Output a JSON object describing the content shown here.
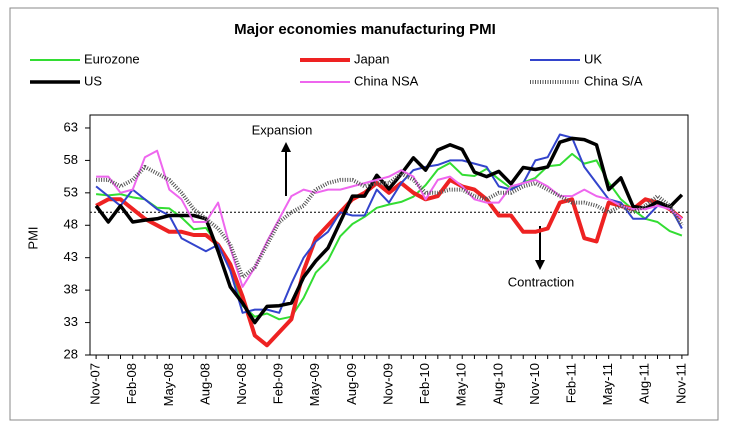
{
  "chart_data": {
    "type": "line",
    "title": "Major economies manufacturing PMI",
    "y_label": "PMI",
    "annotations": [
      "Expansion",
      "Contraction"
    ],
    "reference_line": 50,
    "categories": [
      "Nov-07",
      null,
      null,
      "Feb-08",
      null,
      null,
      "May-08",
      null,
      null,
      "Aug-08",
      null,
      null,
      "Nov-08",
      null,
      null,
      "Feb-09",
      null,
      null,
      "May-09",
      null,
      null,
      "Aug-09",
      null,
      null,
      "Nov-09",
      null,
      null,
      "Feb-10",
      null,
      null,
      "May-10",
      null,
      null,
      "Aug-10",
      null,
      null,
      "Nov-10",
      null,
      null,
      "Feb-11",
      null,
      null,
      "May-11",
      null,
      null,
      "Aug-11",
      null,
      null,
      "Nov-11"
    ],
    "ylim": [
      28,
      65
    ],
    "yticks": [
      28,
      33,
      38,
      43,
      48,
      53,
      58,
      63
    ],
    "grid": false,
    "series": [
      {
        "name": "Eurozone",
        "color": "#33dd33",
        "width": 2,
        "values": [
          52.8,
          52.6,
          52.8,
          52.3,
          52.0,
          50.7,
          50.6,
          49.2,
          47.4,
          47.6,
          45.0,
          41.1,
          35.6,
          33.9,
          34.4,
          33.5,
          33.9,
          36.8,
          40.7,
          42.6,
          46.3,
          48.2,
          49.3,
          50.7,
          51.2,
          51.6,
          52.4,
          54.2,
          56.6,
          57.6,
          55.8,
          55.6,
          56.7,
          55.1,
          53.7,
          54.6,
          55.3,
          57.1,
          57.3,
          59.0,
          57.5,
          58.0,
          54.6,
          52.0,
          50.4,
          49.0,
          48.5,
          47.1,
          46.4
        ]
      },
      {
        "name": "Japan",
        "color": "#ee2222",
        "width": 4,
        "values": [
          51,
          52,
          52,
          50.5,
          49,
          48,
          47,
          47,
          46.5,
          46.5,
          45,
          42,
          37,
          31,
          29.5,
          31.5,
          33.5,
          41,
          46,
          48,
          50,
          52,
          53,
          54.5,
          53,
          54.5,
          53,
          52,
          52.5,
          55,
          54,
          53.5,
          52,
          49.5,
          49.5,
          47,
          47,
          47.5,
          51.5,
          52,
          46,
          45.5,
          51.5,
          51,
          50.5,
          52,
          51.5,
          50.5,
          49
        ]
      },
      {
        "name": "UK",
        "color": "#3344cc",
        "width": 2,
        "values": [
          54,
          52.5,
          51,
          53.5,
          52.0,
          50.5,
          49.5,
          46.0,
          45.0,
          44.0,
          45,
          41,
          34.5,
          35,
          35,
          34.5,
          39,
          43,
          45.5,
          47,
          50,
          49.5,
          49.5,
          53.5,
          51.5,
          54.5,
          56.5,
          57,
          57.3,
          58,
          58,
          57.5,
          57,
          54,
          53.5,
          54.5,
          58,
          58.5,
          62,
          61.5,
          57,
          54.5,
          52,
          51.5,
          49,
          49,
          51,
          51,
          47.5
        ]
      },
      {
        "name": "US",
        "color": "#000000",
        "width": 3.5,
        "values": [
          51,
          48.5,
          51,
          48.5,
          48.8,
          49,
          49.5,
          49.5,
          49.5,
          49,
          44,
          38.5,
          36,
          33,
          35.5,
          35.6,
          36,
          40,
          42.5,
          44.5,
          48.5,
          52.5,
          52.5,
          55.7,
          53.6,
          55.9,
          58.4,
          56.5,
          59.6,
          60.4,
          59.7,
          56.2,
          55.5,
          56.3,
          54.4,
          56.9,
          56.6,
          57,
          60.8,
          61.4,
          61.2,
          60.4,
          53.5,
          55.3,
          50.9,
          50.6,
          51.6,
          50.8,
          52.7
        ]
      },
      {
        "name": "China NSA",
        "color": "#ee66ee",
        "width": 2,
        "values": [
          55.5,
          55.5,
          53,
          53.5,
          58.5,
          59.5,
          53.5,
          52,
          48.5,
          48.5,
          51.5,
          44.5,
          38.5,
          41.5,
          45.5,
          49,
          52.5,
          53.5,
          53,
          53.5,
          53.5,
          54,
          54.5,
          55,
          55.5,
          56.5,
          55.5,
          52,
          55,
          55.5,
          54,
          52,
          51.5,
          51.5,
          54,
          54.5,
          55,
          54,
          52.5,
          52.5,
          53.5,
          52.5,
          52,
          51,
          50.5,
          50.5,
          51,
          50.5,
          49
        ]
      },
      {
        "name": "China S/A",
        "color": "#555555",
        "width": 3,
        "style": "dotted",
        "values": [
          55,
          55,
          54,
          55,
          57,
          56,
          55,
          53,
          50.5,
          49,
          47.5,
          45,
          40,
          41.5,
          45,
          48.5,
          50,
          51,
          53.5,
          54.5,
          55,
          55,
          54,
          54.5,
          54.5,
          56,
          55,
          53,
          53,
          53.5,
          53.5,
          52.5,
          52,
          53,
          53,
          54,
          54.5,
          53.5,
          52.5,
          51.5,
          51.5,
          51,
          50,
          51,
          50,
          51,
          52.5,
          51,
          48
        ]
      }
    ]
  }
}
